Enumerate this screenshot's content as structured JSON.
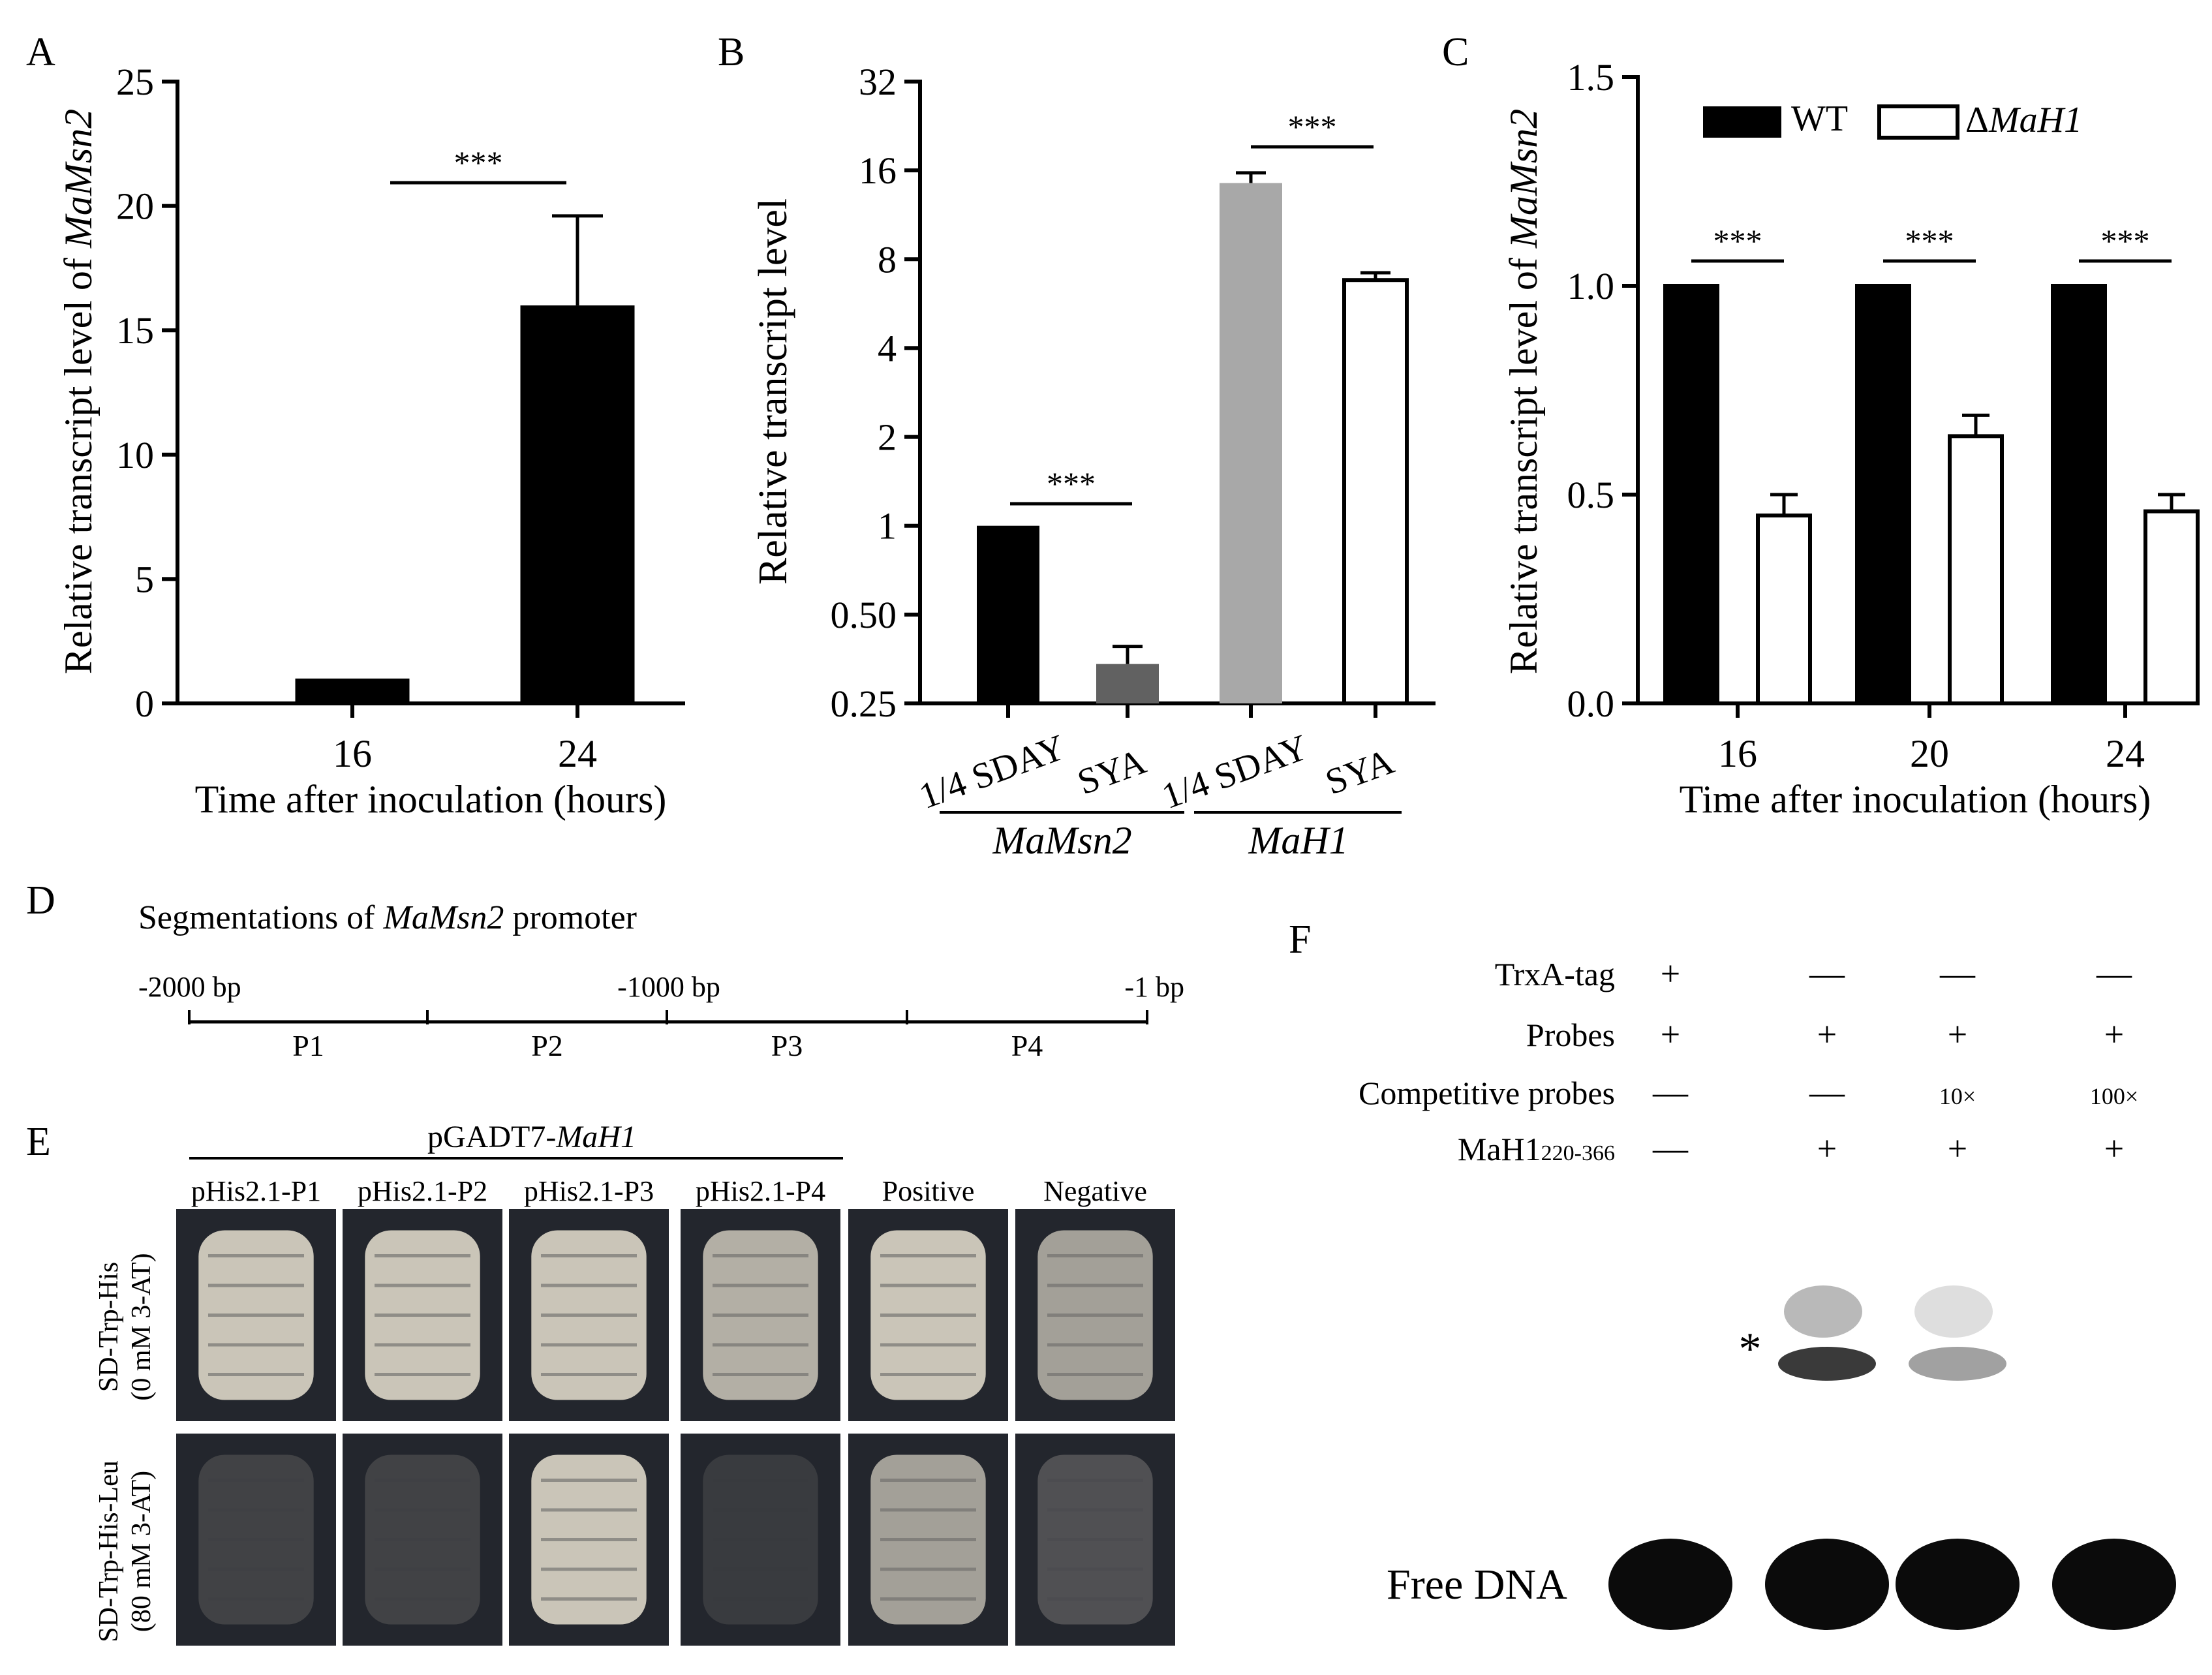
{
  "panel_labels": [
    "A",
    "B",
    "C",
    "D",
    "E",
    "F"
  ],
  "chart_data": [
    {
      "panel": "A",
      "type": "bar",
      "categories": [
        "16",
        "24"
      ],
      "values": [
        1.0,
        16.0
      ],
      "errors": [
        0,
        3.6
      ],
      "xlabel": "Time after inoculation (hours)",
      "ylabel_prefix": "Relative transcript level of ",
      "ylabel_gene": "MaMsn2",
      "ylim": [
        0,
        25
      ],
      "yticks": [
        "0",
        "5",
        "10",
        "15",
        "20",
        "25"
      ],
      "significance": "***",
      "bar_colors": [
        "#000000",
        "#000000"
      ]
    },
    {
      "panel": "B",
      "type": "bar",
      "scale": "log2",
      "categories": [
        "1/4 SDAY",
        "SYA",
        "1/4 SDAY",
        "SYA"
      ],
      "groups": [
        "MaMsn2",
        "MaH1"
      ],
      "values": [
        1.0,
        0.34,
        14.5,
        6.8
      ],
      "errors": [
        0,
        0.05,
        1.2,
        0.4
      ],
      "ylabel": "Relative transcript level",
      "ylim": [
        0.25,
        32
      ],
      "yticks": [
        "0.25",
        "0.50",
        "1",
        "2",
        "4",
        "8",
        "16",
        "32"
      ],
      "significance": [
        "***",
        "***"
      ],
      "bar_colors": [
        "#000000",
        "#616161",
        "#a8a8a8",
        "#ffffff"
      ]
    },
    {
      "panel": "C",
      "type": "bar",
      "categories": [
        "16",
        "20",
        "24"
      ],
      "series": [
        {
          "name": "WT",
          "values": [
            1.0,
            1.0,
            1.0
          ],
          "errors": [
            0,
            0,
            0
          ],
          "color": "#000000"
        },
        {
          "name_prefix": "Δ",
          "name": "MaH1",
          "values": [
            0.45,
            0.64,
            0.46
          ],
          "errors": [
            0.05,
            0.05,
            0.04
          ],
          "color": "#ffffff"
        }
      ],
      "xlabel": "Time after inoculation (hours)",
      "ylabel_prefix": "Relative transcript level of ",
      "ylabel_gene": "MaMsn2",
      "ylim": [
        0,
        1.5
      ],
      "yticks": [
        "0.0",
        "0.5",
        "1.0",
        "1.5"
      ],
      "significance": [
        "***",
        "***",
        "***"
      ]
    }
  ],
  "panel_d": {
    "title_prefix": "Segmentations of ",
    "title_gene": "MaMsn2",
    "title_suffix": " promoter",
    "positions": [
      "-2000 bp",
      "-1000 bp",
      "-1 bp"
    ],
    "segments": [
      "P1",
      "P2",
      "P3",
      "P4"
    ]
  },
  "panel_e": {
    "header_prefix": "pGADT7-",
    "header_gene": "MaH1",
    "columns": [
      "pHis2.1-P1",
      "pHis2.1-P2",
      "pHis2.1-P3",
      "pHis2.1-P4",
      "Positive",
      "Negative"
    ],
    "rows": [
      {
        "medium": "SD-Trp-His",
        "condition": "(0 mM 3-AT)",
        "growth": [
          1,
          1,
          1,
          0.85,
          1,
          0.75
        ]
      },
      {
        "medium": "SD-Trp-His-Leu",
        "condition": "(80 mM 3-AT)",
        "growth": [
          0.1,
          0.1,
          1,
          0.05,
          0.75,
          0.2
        ]
      }
    ]
  },
  "panel_f": {
    "rows": [
      {
        "label": "TrxA-tag",
        "values": [
          "+",
          "—",
          "—",
          "—"
        ]
      },
      {
        "label": "Probes",
        "values": [
          "+",
          "+",
          "+",
          "+"
        ]
      },
      {
        "label": "Competitive probes",
        "values": [
          "—",
          "—",
          "10×",
          "100×"
        ]
      },
      {
        "label": "MaH1",
        "label_sub": "220-366",
        "values": [
          "—",
          "+",
          "+",
          "+"
        ]
      }
    ],
    "shift_marker": "*",
    "free_dna_label": "Free DNA"
  },
  "colors": {
    "ink": "#000000",
    "plate": "#23262d",
    "colony": "#ddd7c8",
    "blot_band": "#0b0b0b"
  }
}
